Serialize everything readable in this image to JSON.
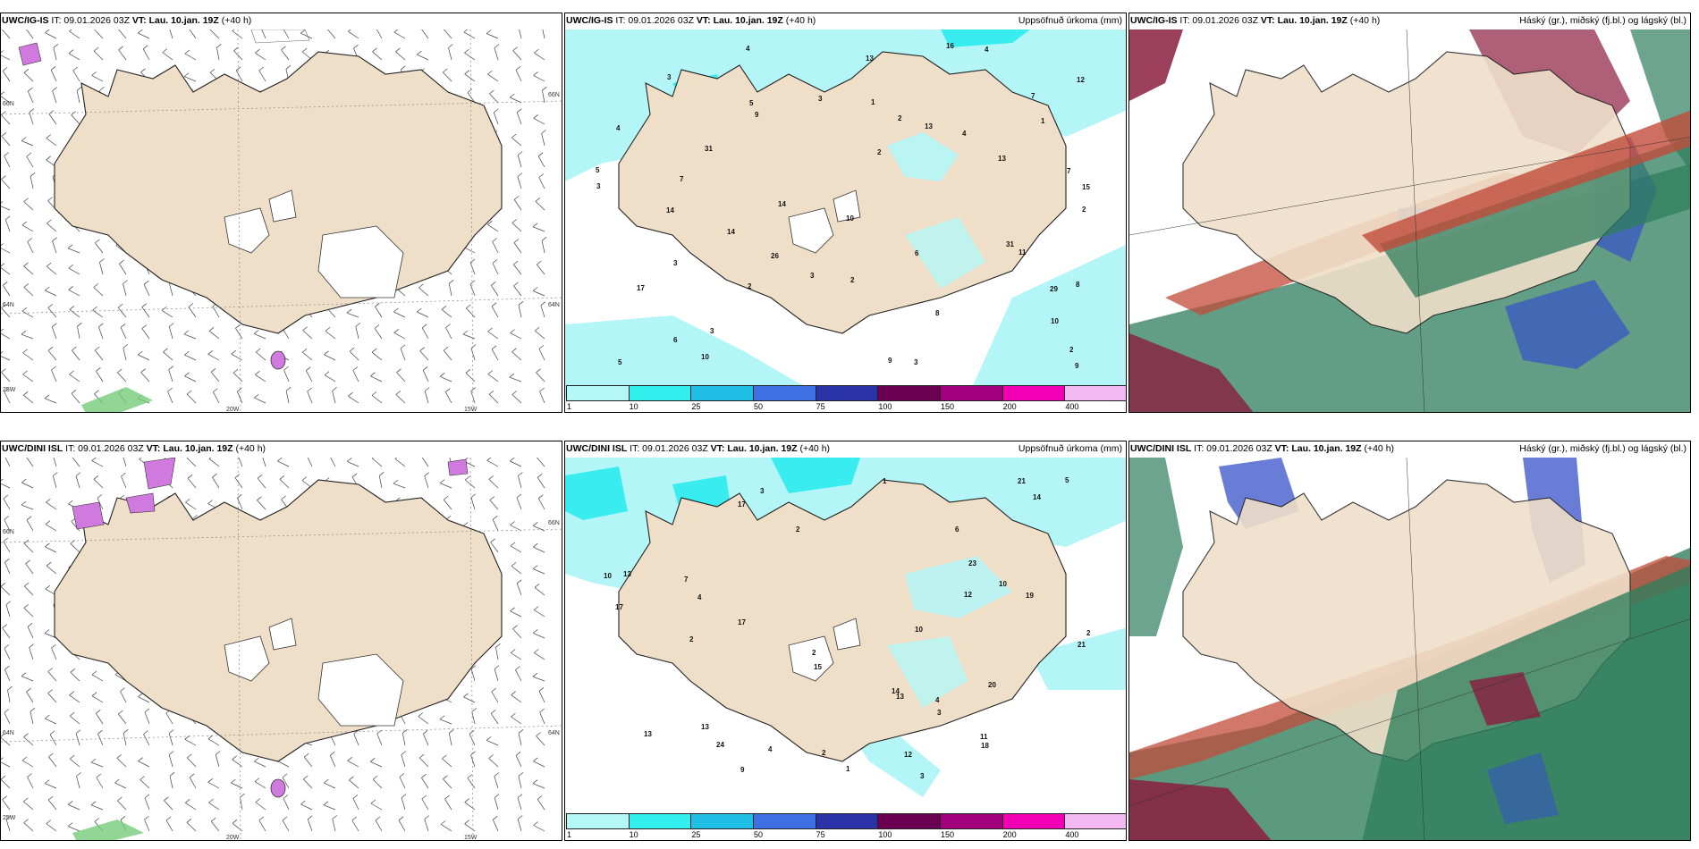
{
  "rows": [
    {
      "model": "UWC/IG-IS",
      "it": "IT: 09.01.2026 03Z",
      "vt_label": "VT:",
      "vt_value": "Lau. 10.jan. 19Z",
      "lead": "(+40 h)",
      "lat_labels": [
        "66N",
        "64N",
        "25W"
      ],
      "lon_labels": [
        "20W",
        "15W"
      ],
      "right_lat_labels": [
        "66N",
        "64N"
      ]
    },
    {
      "model": "UWC/DINI ISL",
      "it": "IT: 09.01.2026 03Z",
      "vt_label": "VT:",
      "vt_value": "Lau. 10.jan. 19Z",
      "lead": "(+40 h)",
      "lat_labels": [
        "66N",
        "64N",
        "25W"
      ],
      "lon_labels": [
        "20W",
        "15W"
      ],
      "right_lat_labels": [
        "66N",
        "64N"
      ]
    }
  ],
  "precip_title": "Uppsöfnuð úrkoma (mm)",
  "cloud_title": "Háský (gr.), miðský (fj.bl.) og lágský (bl.)",
  "colorbar": {
    "labels": [
      "1",
      "10",
      "25",
      "50",
      "75",
      "100",
      "150",
      "200",
      "400"
    ],
    "colors": [
      "#b3f7f7",
      "#33f0ef",
      "#1fbfe6",
      "#3e6fe3",
      "#2a32a8",
      "#6b0052",
      "#a3007e",
      "#f200b6",
      "#f4b8f2"
    ]
  },
  "colors": {
    "land": "#efdfc9",
    "glacier": "#ffffff",
    "precip_light": "#b4f6f7",
    "precip_med": "#38ecef",
    "cloud_high": "#8a1d3e",
    "cloud_mid": "#3752c8",
    "cloud_low": "#2e7d5c"
  },
  "precip_values_top": [
    "9",
    "7",
    "13",
    "15",
    "14",
    "8",
    "26",
    "16",
    "29",
    "7",
    "31",
    "11",
    "13",
    "2",
    "17",
    "10",
    "14",
    "5",
    "4",
    "3",
    "2",
    "1",
    "6",
    "3",
    "2",
    "4",
    "5",
    "8",
    "9",
    "12",
    "10",
    "9",
    "14",
    "13",
    "7",
    "3",
    "2",
    "6",
    "1",
    "31",
    "3",
    "4",
    "3",
    "2",
    "10",
    "3",
    "2",
    "4",
    "5",
    "3"
  ],
  "precip_values_bottom": [
    "3",
    "17",
    "13",
    "7",
    "10",
    "12",
    "21",
    "17",
    "15",
    "24",
    "13",
    "10",
    "2",
    "14",
    "12",
    "21",
    "17",
    "14",
    "20",
    "19",
    "11",
    "13",
    "9",
    "18",
    "10",
    "23",
    "2",
    "4",
    "1",
    "2",
    "3",
    "5",
    "6",
    "4",
    "3",
    "2",
    "1",
    "13",
    "2",
    "4"
  ]
}
